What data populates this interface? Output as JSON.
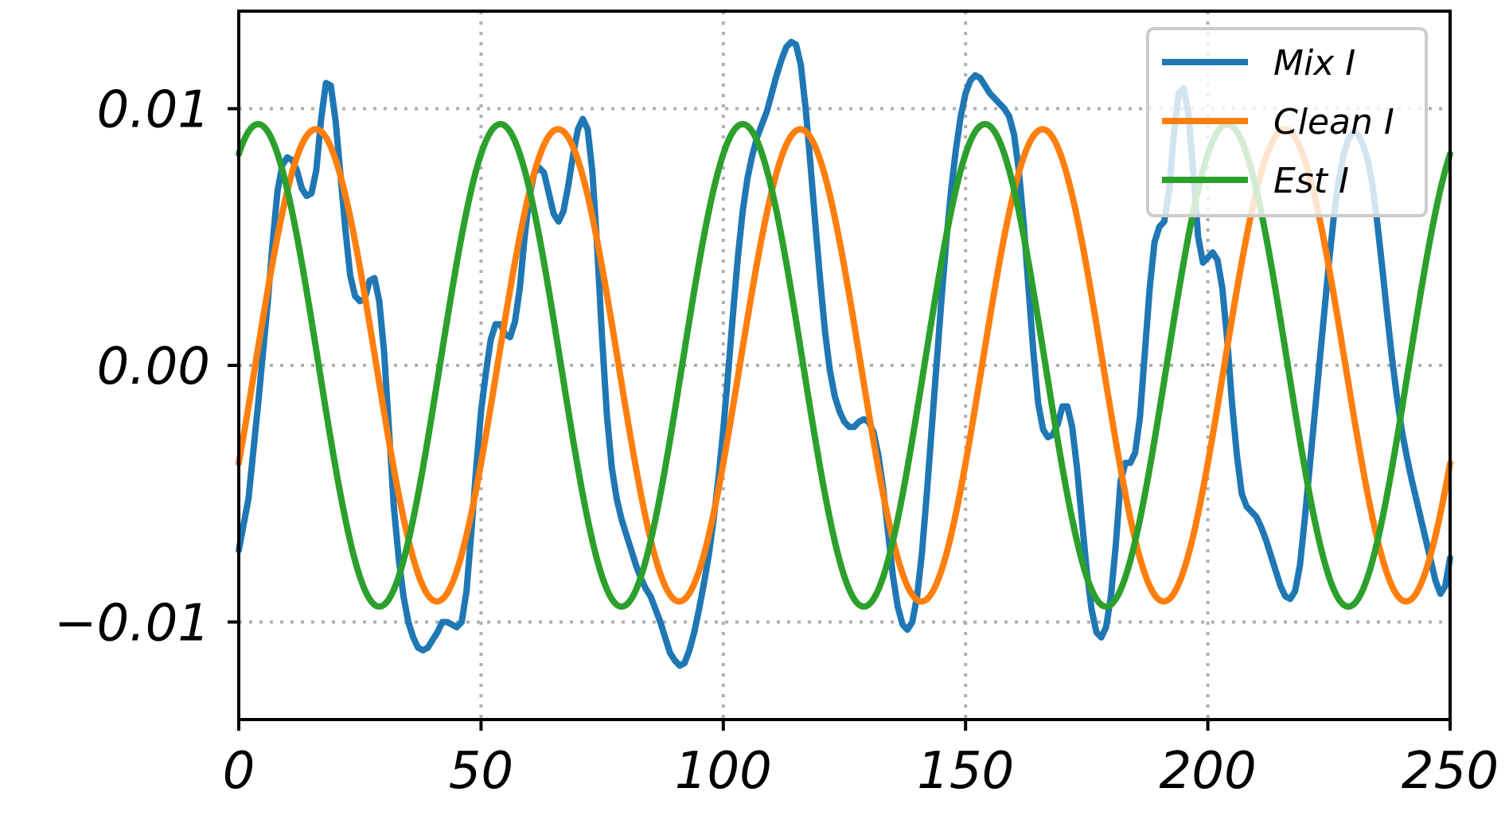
{
  "chart_data": {
    "type": "line",
    "title": "",
    "xlabel": "",
    "ylabel": "",
    "xlim": [
      0,
      250
    ],
    "ylim": [
      -0.0138,
      0.0138
    ],
    "grid": true,
    "legend_position": "top-right",
    "x_ticks": [
      {
        "value": 0,
        "label": "0"
      },
      {
        "value": 50,
        "label": "50"
      },
      {
        "value": 100,
        "label": "100"
      },
      {
        "value": 150,
        "label": "150"
      },
      {
        "value": 200,
        "label": "200"
      },
      {
        "value": 250,
        "label": "250"
      }
    ],
    "y_ticks": [
      {
        "value": 0.01,
        "label": "0.01"
      },
      {
        "value": 0,
        "label": "0.00"
      },
      {
        "value": -0.01,
        "label": "−0.01"
      }
    ],
    "series": [
      {
        "name": "Mix I",
        "color": "#1f77b4",
        "points": [
          [
            0,
            -0.0072
          ],
          [
            2,
            -0.0052
          ],
          [
            4,
            -0.0015
          ],
          [
            6,
            0.0025
          ],
          [
            7,
            0.0048
          ],
          [
            8,
            0.0068
          ],
          [
            9,
            0.0078
          ],
          [
            10,
            0.0081
          ],
          [
            11,
            0.008
          ],
          [
            12,
            0.0076
          ],
          [
            13,
            0.0069
          ],
          [
            14,
            0.0066
          ],
          [
            15,
            0.0067
          ],
          [
            16,
            0.0076
          ],
          [
            17,
            0.0096
          ],
          [
            18,
            0.011
          ],
          [
            19,
            0.0109
          ],
          [
            20,
            0.0095
          ],
          [
            21,
            0.0074
          ],
          [
            22,
            0.0053
          ],
          [
            23,
            0.0035
          ],
          [
            24,
            0.0027
          ],
          [
            25,
            0.0025
          ],
          [
            26,
            0.0026
          ],
          [
            27,
            0.0033
          ],
          [
            28,
            0.0034
          ],
          [
            29,
            0.0025
          ],
          [
            30,
            0.0005
          ],
          [
            31,
            -0.0025
          ],
          [
            32,
            -0.0055
          ],
          [
            33,
            -0.0075
          ],
          [
            34,
            -0.009
          ],
          [
            35,
            -0.01
          ],
          [
            36,
            -0.0106
          ],
          [
            37,
            -0.011
          ],
          [
            38,
            -0.0111
          ],
          [
            39,
            -0.011
          ],
          [
            40,
            -0.0107
          ],
          [
            41,
            -0.0104
          ],
          [
            42,
            -0.01
          ],
          [
            43,
            -0.01
          ],
          [
            44,
            -0.0101
          ],
          [
            45,
            -0.0102
          ],
          [
            46,
            -0.01
          ],
          [
            47,
            -0.0088
          ],
          [
            48,
            -0.0065
          ],
          [
            49,
            -0.004
          ],
          [
            50,
            -0.0018
          ],
          [
            51,
            -0.0003
          ],
          [
            52,
            0.001
          ],
          [
            53,
            0.0016
          ],
          [
            54,
            0.0016
          ],
          [
            55,
            0.0012
          ],
          [
            56,
            0.0011
          ],
          [
            57,
            0.0017
          ],
          [
            58,
            0.003
          ],
          [
            59,
            0.005
          ],
          [
            60,
            0.0066
          ],
          [
            61,
            0.0075
          ],
          [
            62,
            0.0077
          ],
          [
            63,
            0.0075
          ],
          [
            64,
            0.0067
          ],
          [
            65,
            0.0059
          ],
          [
            66,
            0.0056
          ],
          [
            67,
            0.006
          ],
          [
            68,
            0.007
          ],
          [
            69,
            0.0082
          ],
          [
            70,
            0.0092
          ],
          [
            71,
            0.0096
          ],
          [
            72,
            0.0092
          ],
          [
            73,
            0.0075
          ],
          [
            74,
            0.0045
          ],
          [
            75,
            0.001
          ],
          [
            76,
            -0.002
          ],
          [
            77,
            -0.004
          ],
          [
            78,
            -0.0052
          ],
          [
            79,
            -0.006
          ],
          [
            80,
            -0.0066
          ],
          [
            81,
            -0.0072
          ],
          [
            82,
            -0.0078
          ],
          [
            83,
            -0.0083
          ],
          [
            84,
            -0.0087
          ],
          [
            85,
            -0.009
          ],
          [
            86,
            -0.0095
          ],
          [
            87,
            -0.01
          ],
          [
            88,
            -0.0106
          ],
          [
            89,
            -0.0112
          ],
          [
            90,
            -0.0115
          ],
          [
            91,
            -0.0117
          ],
          [
            92,
            -0.0116
          ],
          [
            93,
            -0.0111
          ],
          [
            94,
            -0.0104
          ],
          [
            95,
            -0.0095
          ],
          [
            96,
            -0.0085
          ],
          [
            97,
            -0.0074
          ],
          [
            98,
            -0.006
          ],
          [
            99,
            -0.0044
          ],
          [
            100,
            -0.0025
          ],
          [
            101,
            -0.0003
          ],
          [
            102,
            0.002
          ],
          [
            103,
            0.0042
          ],
          [
            104,
            0.006
          ],
          [
            105,
            0.0073
          ],
          [
            106,
            0.0082
          ],
          [
            107,
            0.0089
          ],
          [
            108,
            0.0094
          ],
          [
            109,
            0.0099
          ],
          [
            110,
            0.0106
          ],
          [
            111,
            0.0113
          ],
          [
            112,
            0.0119
          ],
          [
            113,
            0.0124
          ],
          [
            114,
            0.0126
          ],
          [
            115,
            0.0125
          ],
          [
            116,
            0.0117
          ],
          [
            117,
            0.01
          ],
          [
            118,
            0.0078
          ],
          [
            119,
            0.0055
          ],
          [
            120,
            0.0033
          ],
          [
            121,
            0.0013
          ],
          [
            122,
            -0.0002
          ],
          [
            123,
            -0.0012
          ],
          [
            124,
            -0.0018
          ],
          [
            125,
            -0.0022
          ],
          [
            126,
            -0.0024
          ],
          [
            127,
            -0.0024
          ],
          [
            128,
            -0.0022
          ],
          [
            129,
            -0.0021
          ],
          [
            130,
            -0.0022
          ],
          [
            131,
            -0.0026
          ],
          [
            132,
            -0.0035
          ],
          [
            133,
            -0.0048
          ],
          [
            134,
            -0.0065
          ],
          [
            135,
            -0.0082
          ],
          [
            136,
            -0.0094
          ],
          [
            137,
            -0.0101
          ],
          [
            138,
            -0.0103
          ],
          [
            139,
            -0.01
          ],
          [
            140,
            -0.009
          ],
          [
            141,
            -0.0073
          ],
          [
            142,
            -0.005
          ],
          [
            143,
            -0.0025
          ],
          [
            144,
            0.0
          ],
          [
            145,
            0.0025
          ],
          [
            146,
            0.0048
          ],
          [
            147,
            0.0068
          ],
          [
            148,
            0.0084
          ],
          [
            149,
            0.0097
          ],
          [
            150,
            0.0106
          ],
          [
            151,
            0.0111
          ],
          [
            152,
            0.0113
          ],
          [
            153,
            0.0112
          ],
          [
            154,
            0.0109
          ],
          [
            155,
            0.0106
          ],
          [
            156,
            0.0104
          ],
          [
            157,
            0.0102
          ],
          [
            158,
            0.01
          ],
          [
            159,
            0.0097
          ],
          [
            160,
            0.009
          ],
          [
            161,
            0.0076
          ],
          [
            162,
            0.0055
          ],
          [
            163,
            0.003
          ],
          [
            164,
            0.0005
          ],
          [
            165,
            -0.0015
          ],
          [
            166,
            -0.0025
          ],
          [
            167,
            -0.0028
          ],
          [
            168,
            -0.0027
          ],
          [
            169,
            -0.0023
          ],
          [
            170,
            -0.0016
          ],
          [
            171,
            -0.0016
          ],
          [
            172,
            -0.0024
          ],
          [
            173,
            -0.004
          ],
          [
            174,
            -0.006
          ],
          [
            175,
            -0.008
          ],
          [
            176,
            -0.0095
          ],
          [
            177,
            -0.0104
          ],
          [
            178,
            -0.0106
          ],
          [
            179,
            -0.0102
          ],
          [
            180,
            -0.009
          ],
          [
            181,
            -0.007
          ],
          [
            182,
            -0.0045
          ],
          [
            183,
            -0.0038
          ],
          [
            184,
            -0.0038
          ],
          [
            185,
            -0.0034
          ],
          [
            186,
            -0.002
          ],
          [
            187,
            0.0005
          ],
          [
            188,
            0.003
          ],
          [
            189,
            0.0048
          ],
          [
            190,
            0.0054
          ],
          [
            191,
            0.0056
          ],
          [
            192,
            0.0068
          ],
          [
            193,
            0.009
          ],
          [
            194,
            0.0106
          ],
          [
            195,
            0.0108
          ],
          [
            196,
            0.0098
          ],
          [
            197,
            0.0075
          ],
          [
            198,
            0.005
          ],
          [
            199,
            0.004
          ],
          [
            200,
            0.0042
          ],
          [
            201,
            0.0044
          ],
          [
            202,
            0.0041
          ],
          [
            203,
            0.003
          ],
          [
            204,
            0.001
          ],
          [
            205,
            -0.0015
          ],
          [
            206,
            -0.0035
          ],
          [
            207,
            -0.005
          ],
          [
            208,
            -0.0055
          ],
          [
            209,
            -0.0057
          ],
          [
            210,
            -0.0059
          ],
          [
            211,
            -0.0063
          ],
          [
            212,
            -0.0068
          ],
          [
            213,
            -0.0074
          ],
          [
            214,
            -0.008
          ],
          [
            215,
            -0.0086
          ],
          [
            216,
            -0.009
          ],
          [
            217,
            -0.0091
          ],
          [
            218,
            -0.0088
          ],
          [
            219,
            -0.0078
          ],
          [
            220,
            -0.006
          ],
          [
            221,
            -0.004
          ],
          [
            222,
            -0.002
          ],
          [
            223,
            0.0
          ],
          [
            224,
            0.002
          ],
          [
            225,
            0.004
          ],
          [
            226,
            0.0058
          ],
          [
            227,
            0.0072
          ],
          [
            228,
            0.0082
          ],
          [
            229,
            0.0088
          ],
          [
            230,
            0.0091
          ],
          [
            231,
            0.009
          ],
          [
            232,
            0.0086
          ],
          [
            233,
            0.008
          ],
          [
            234,
            0.007
          ],
          [
            235,
            0.0055
          ],
          [
            236,
            0.0038
          ],
          [
            237,
            0.002
          ],
          [
            238,
            0.0003
          ],
          [
            239,
            -0.0012
          ],
          [
            240,
            -0.0025
          ],
          [
            241,
            -0.0035
          ],
          [
            242,
            -0.0044
          ],
          [
            243,
            -0.0052
          ],
          [
            244,
            -0.006
          ],
          [
            245,
            -0.0068
          ],
          [
            246,
            -0.0076
          ],
          [
            247,
            -0.0084
          ],
          [
            248,
            -0.0089
          ],
          [
            249,
            -0.0086
          ],
          [
            250,
            -0.0075
          ]
        ]
      },
      {
        "name": "Clean I",
        "color": "#ff7f0e",
        "model": {
          "amplitude": 0.0092,
          "period": 50,
          "phase_offset": 3.4
        }
      },
      {
        "name": "Est I",
        "color": "#2ca02c",
        "model": {
          "amplitude": 0.0094,
          "period": 50,
          "phase_offset": -8.5
        }
      }
    ]
  }
}
